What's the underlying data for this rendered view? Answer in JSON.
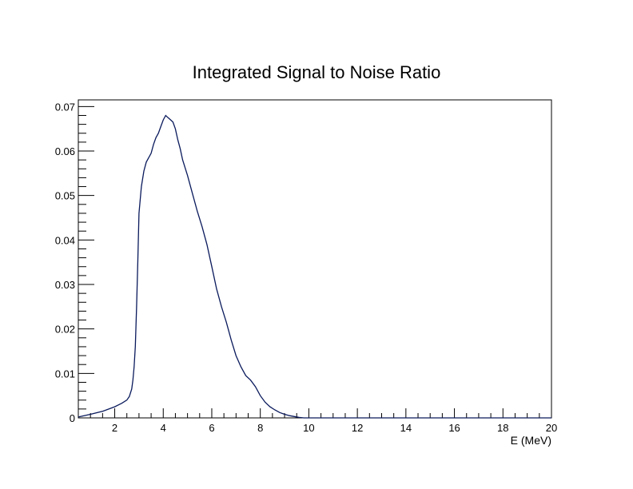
{
  "chart_data": {
    "type": "line",
    "title": "Integrated Signal to Noise Ratio",
    "xlabel": "E (MeV)",
    "ylabel": "",
    "xlim": [
      0.5,
      20
    ],
    "ylim": [
      0,
      0.0715
    ],
    "x_ticks": [
      2,
      4,
      6,
      8,
      10,
      12,
      14,
      16,
      18,
      20
    ],
    "x_tick_labels": [
      "2",
      "4",
      "6",
      "8",
      "10",
      "12",
      "14",
      "16",
      "18",
      "20"
    ],
    "y_ticks": [
      0,
      0.01,
      0.02,
      0.03,
      0.04,
      0.05,
      0.06,
      0.07
    ],
    "y_tick_labels": [
      "0",
      "0.01",
      "0.02",
      "0.03",
      "0.04",
      "0.05",
      "0.06",
      "0.07"
    ],
    "grid": false,
    "legend": "none",
    "series": [
      {
        "color": "#0a1a5c",
        "x": [
          0.5,
          1.0,
          1.5,
          2.0,
          2.3,
          2.5,
          2.6,
          2.7,
          2.75,
          2.8,
          2.85,
          2.9,
          2.95,
          3.0,
          3.1,
          3.2,
          3.3,
          3.4,
          3.5,
          3.6,
          3.7,
          3.8,
          3.9,
          4.0,
          4.1,
          4.2,
          4.3,
          4.4,
          4.5,
          4.6,
          4.7,
          4.8,
          5.0,
          5.2,
          5.4,
          5.6,
          5.8,
          6.0,
          6.2,
          6.4,
          6.6,
          6.8,
          7.0,
          7.2,
          7.4,
          7.6,
          7.8,
          8.0,
          8.2,
          8.4,
          8.6,
          8.8,
          9.0,
          9.2,
          9.4,
          9.6,
          9.8,
          10.0,
          12.0,
          14.0,
          16.0,
          18.0,
          20.0
        ],
        "y": [
          0.0002,
          0.0008,
          0.0015,
          0.0025,
          0.0033,
          0.004,
          0.0048,
          0.0065,
          0.0085,
          0.0115,
          0.016,
          0.025,
          0.035,
          0.046,
          0.052,
          0.0555,
          0.0575,
          0.0585,
          0.0595,
          0.0615,
          0.063,
          0.064,
          0.0655,
          0.067,
          0.068,
          0.0675,
          0.067,
          0.0665,
          0.065,
          0.0625,
          0.0605,
          0.058,
          0.0545,
          0.0505,
          0.0465,
          0.043,
          0.039,
          0.034,
          0.029,
          0.025,
          0.0215,
          0.0175,
          0.014,
          0.0115,
          0.0095,
          0.0085,
          0.007,
          0.005,
          0.0035,
          0.0025,
          0.0018,
          0.0012,
          0.0008,
          0.0005,
          0.0003,
          0.0001,
          0.0,
          0.0,
          0.0,
          0.0,
          0.0,
          0.0,
          0.0
        ]
      }
    ]
  }
}
